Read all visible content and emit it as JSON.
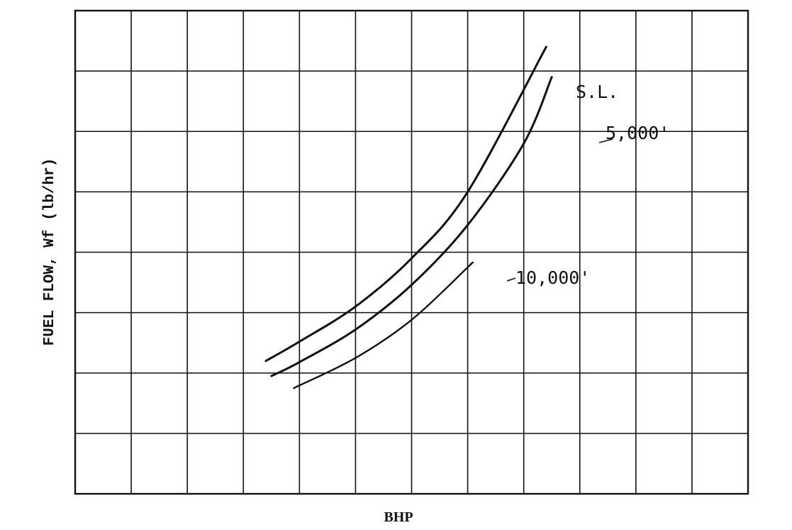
{
  "chart_data": {
    "type": "line",
    "title": "",
    "xlabel": "BHP",
    "ylabel": "FUEL FLOW, Wf  (lb/hr)",
    "xlim": [
      0,
      12
    ],
    "ylim": [
      0,
      8
    ],
    "grid": true,
    "tick_labels_shown": false,
    "series": [
      {
        "name": "S.L.",
        "color": "#111111",
        "points": [
          [
            3.4,
            2.2
          ],
          [
            4,
            2.52
          ],
          [
            5,
            3.1
          ],
          [
            6,
            3.9
          ],
          [
            7,
            5.0
          ],
          [
            8.4,
            7.4
          ]
        ]
      },
      {
        "name": "5,000'",
        "color": "#111111",
        "points": [
          [
            3.5,
            1.95
          ],
          [
            4,
            2.18
          ],
          [
            5,
            2.72
          ],
          [
            6,
            3.46
          ],
          [
            7,
            4.45
          ],
          [
            8,
            5.8
          ],
          [
            8.5,
            6.9
          ]
        ]
      },
      {
        "name": "10,000'",
        "color": "#111111",
        "points": [
          [
            3.9,
            1.75
          ],
          [
            5,
            2.25
          ],
          [
            6,
            2.88
          ],
          [
            7,
            3.75
          ],
          [
            7.05,
            3.8
          ]
        ]
      }
    ]
  }
}
